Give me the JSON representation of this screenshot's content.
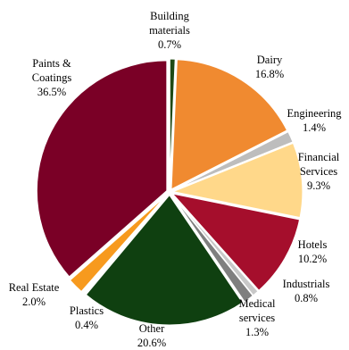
{
  "chart_data": {
    "type": "pie",
    "title": "",
    "start_angle_deg": 0,
    "direction": "clockwise",
    "slices": [
      {
        "name": "Building materials",
        "value": 0.7,
        "label": "0.7%",
        "color": "#1f4a14"
      },
      {
        "name": "Dairy",
        "value": 16.8,
        "label": "16.8%",
        "color": "#f08a30"
      },
      {
        "name": "Engineering",
        "value": 1.4,
        "label": "1.4%",
        "color": "#bdbdbd"
      },
      {
        "name": "Financial Services",
        "value": 9.3,
        "label": "9.3%",
        "color": "#ffd88a"
      },
      {
        "name": "Hotels",
        "value": 10.2,
        "label": "10.2%",
        "color": "#a50e2c"
      },
      {
        "name": "Industrials",
        "value": 0.8,
        "label": "0.8%",
        "color": "#c8c8c8"
      },
      {
        "name": "Medical services",
        "value": 1.3,
        "label": "1.3%",
        "color": "#7f7f7f"
      },
      {
        "name": "Other",
        "value": 20.6,
        "label": "20.6%",
        "color": "#0f4010"
      },
      {
        "name": "Plastics",
        "value": 0.4,
        "label": "0.4%",
        "color": "#ffffff"
      },
      {
        "name": "Real Estate",
        "value": 2.0,
        "label": "2.0%",
        "color": "#f79a1e"
      },
      {
        "name": "Paints & Coatings",
        "value": 36.5,
        "label": "36.5%",
        "color": "#7a0026"
      }
    ]
  }
}
